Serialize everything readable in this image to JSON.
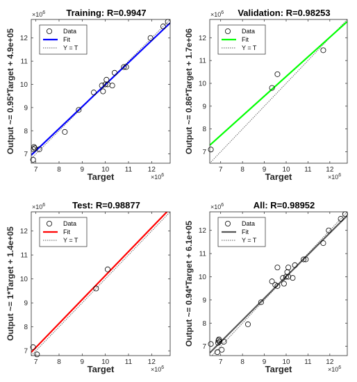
{
  "colors": {
    "background": "#ffffff",
    "axes": "#262626",
    "marker": "#000000",
    "ideal_line": "#555555"
  },
  "legend_labels": [
    "Data",
    "Fit",
    "Y = T"
  ],
  "chart_data": [
    {
      "type": "scatter",
      "title": "Training: R=0.9947",
      "xlabel": "Target",
      "ylabel": "Output ~= 0.95*Target + 4.9e+05",
      "exponent": "×10",
      "exponent_power": "6",
      "xlim": [
        6.8,
        12.8
      ],
      "ylim": [
        6.6,
        12.8
      ],
      "xticks": [
        7,
        8,
        9,
        10,
        11,
        12
      ],
      "yticks": [
        7,
        8,
        9,
        10,
        11,
        12
      ],
      "fit": {
        "slope": 0.95,
        "intercept": 0.49,
        "color": "#0000ff"
      },
      "legend_position": "top-left",
      "points": [
        [
          6.88,
          6.75
        ],
        [
          6.9,
          7.2
        ],
        [
          6.92,
          7.3
        ],
        [
          6.95,
          7.25
        ],
        [
          7.15,
          7.2
        ],
        [
          8.25,
          7.95
        ],
        [
          8.85,
          8.9
        ],
        [
          9.5,
          9.65
        ],
        [
          9.85,
          9.95
        ],
        [
          9.9,
          9.7
        ],
        [
          10.0,
          10.0
        ],
        [
          10.05,
          10.2
        ],
        [
          10.1,
          10.0
        ],
        [
          10.3,
          9.95
        ],
        [
          10.4,
          10.5
        ],
        [
          10.8,
          10.75
        ],
        [
          10.9,
          10.75
        ],
        [
          11.95,
          12.0
        ],
        [
          12.5,
          12.5
        ],
        [
          12.7,
          12.7
        ]
      ]
    },
    {
      "type": "scatter",
      "title": "Validation: R=0.98253",
      "xlabel": "Target",
      "ylabel": "Output ~= 0.86*Target + 1.7e+06",
      "exponent": "×10",
      "exponent_power": "6",
      "xlim": [
        6.5,
        12.8
      ],
      "ylim": [
        6.5,
        12.8
      ],
      "xticks": [
        7,
        8,
        9,
        10,
        11,
        12
      ],
      "yticks": [
        7,
        8,
        9,
        10,
        11,
        12
      ],
      "fit": {
        "slope": 0.86,
        "intercept": 1.7,
        "color": "#00ff00"
      },
      "legend_position": "top-left",
      "points": [
        [
          6.55,
          7.1
        ],
        [
          9.35,
          9.8
        ],
        [
          9.6,
          10.4
        ],
        [
          11.7,
          11.45
        ]
      ]
    },
    {
      "type": "scatter",
      "title": "Test: R=0.98877",
      "xlabel": "Target",
      "ylabel": "Output ~= 1*Target + 1.4e+05",
      "exponent": "×10",
      "exponent_power": "6",
      "xlim": [
        6.8,
        12.8
      ],
      "ylim": [
        6.8,
        12.8
      ],
      "xticks": [
        7,
        8,
        9,
        10,
        11,
        12
      ],
      "yticks": [
        7,
        8,
        9,
        10,
        11,
        12
      ],
      "fit": {
        "slope": 1.0,
        "intercept": 0.14,
        "color": "#ff0000"
      },
      "legend_position": "top-left",
      "points": [
        [
          6.88,
          7.15
        ],
        [
          7.05,
          6.85
        ],
        [
          9.6,
          9.6
        ],
        [
          10.1,
          10.4
        ]
      ]
    },
    {
      "type": "scatter",
      "title": "All: R=0.98952",
      "xlabel": "Target",
      "ylabel": "Output ~= 0.94*Target + 6.1e+05",
      "exponent": "×10",
      "exponent_power": "6",
      "xlim": [
        6.5,
        12.8
      ],
      "ylim": [
        6.6,
        12.8
      ],
      "xticks": [
        7,
        8,
        9,
        10,
        11,
        12
      ],
      "yticks": [
        7,
        8,
        9,
        10,
        11,
        12
      ],
      "fit": {
        "slope": 0.94,
        "intercept": 0.61,
        "color": "#555555"
      },
      "legend_position": "top-left",
      "points": [
        [
          6.55,
          7.1
        ],
        [
          6.85,
          6.75
        ],
        [
          6.88,
          7.15
        ],
        [
          6.9,
          7.25
        ],
        [
          6.92,
          7.3
        ],
        [
          6.95,
          7.2
        ],
        [
          7.05,
          6.85
        ],
        [
          7.15,
          7.2
        ],
        [
          8.25,
          7.95
        ],
        [
          8.85,
          8.9
        ],
        [
          9.35,
          9.8
        ],
        [
          9.5,
          9.65
        ],
        [
          9.6,
          9.6
        ],
        [
          9.6,
          10.4
        ],
        [
          9.85,
          9.95
        ],
        [
          9.9,
          9.7
        ],
        [
          10.0,
          10.0
        ],
        [
          10.05,
          10.2
        ],
        [
          10.1,
          10.0
        ],
        [
          10.1,
          10.4
        ],
        [
          10.3,
          9.95
        ],
        [
          10.4,
          10.5
        ],
        [
          10.8,
          10.75
        ],
        [
          10.9,
          10.75
        ],
        [
          11.7,
          11.45
        ],
        [
          11.95,
          12.0
        ],
        [
          12.5,
          12.5
        ],
        [
          12.7,
          12.7
        ]
      ]
    }
  ]
}
